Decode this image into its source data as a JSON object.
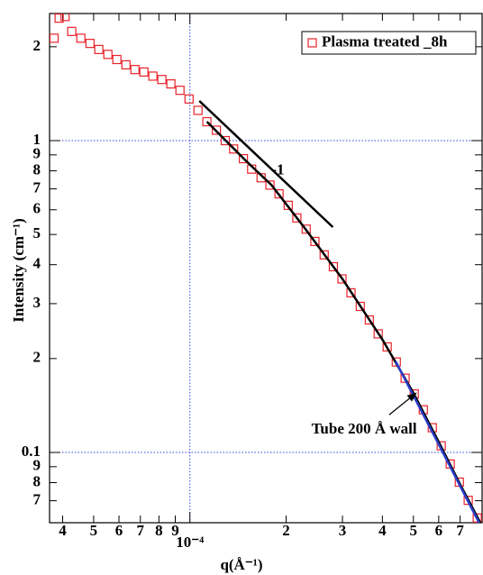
{
  "chart_data": {
    "type": "scatter",
    "xlabel": "q(Å⁻¹)",
    "ylabel": "Intensity (cm⁻¹)",
    "xscale": "log",
    "yscale": "log",
    "xlim": [
      3.64e-05,
      0.00082
    ],
    "ylim": [
      0.0595,
      2.556
    ],
    "xticks": [
      {
        "value": 4e-05,
        "label": "4"
      },
      {
        "value": 5e-05,
        "label": "5"
      },
      {
        "value": 6e-05,
        "label": "6"
      },
      {
        "value": 7e-05,
        "label": "7"
      },
      {
        "value": 8e-05,
        "label": "8"
      },
      {
        "value": 9e-05,
        "label": "9"
      },
      {
        "value": 0.0001,
        "label": "10⁻⁴"
      },
      {
        "value": 0.0002,
        "label": "2"
      },
      {
        "value": 0.0003,
        "label": "3"
      },
      {
        "value": 0.0004,
        "label": "4"
      },
      {
        "value": 0.0005,
        "label": "5"
      },
      {
        "value": 0.0006,
        "label": "6"
      },
      {
        "value": 0.0007,
        "label": "7"
      }
    ],
    "yticks": [
      {
        "value": 0.07,
        "label": "7"
      },
      {
        "value": 0.08,
        "label": "8"
      },
      {
        "value": 0.09,
        "label": "9"
      },
      0.1,
      {
        "value": 0.2,
        "label": "2"
      },
      {
        "value": 0.3,
        "label": "3"
      },
      {
        "value": 0.4,
        "label": "4"
      },
      {
        "value": 0.5,
        "label": "5"
      },
      {
        "value": 0.6,
        "label": "6"
      },
      {
        "value": 0.7,
        "label": "7"
      },
      {
        "value": 0.8,
        "label": "8"
      },
      {
        "value": 0.9,
        "label": "9"
      },
      1,
      2
    ],
    "grid": "decades",
    "grid_color": "#3344dd",
    "legend": "upper right",
    "series": [
      {
        "name": "Plasma treated _8h",
        "color": "#e8222a",
        "marker": "square",
        "x": [
          3.76e-05,
          3.9e-05,
          4.07e-05,
          4.27e-05,
          4.56e-05,
          4.87e-05,
          5.19e-05,
          5.54e-05,
          5.91e-05,
          6.31e-05,
          6.73e-05,
          7.18e-05,
          7.66e-05,
          8.17e-05,
          8.72e-05,
          9.31e-05,
          9.94e-05,
          0.000106,
          0.000113,
          0.000121,
          0.000129,
          0.000137,
          0.000147,
          0.000156,
          0.000167,
          0.000178,
          0.00019,
          0.000203,
          0.000216,
          0.000231,
          0.000246,
          0.000263,
          0.000281,
          0.000299,
          0.000319,
          0.000341,
          0.000364,
          0.000388,
          0.000414,
          0.000442,
          0.000471,
          0.000503,
          0.000537,
          0.000573,
          0.000611,
          0.000652,
          0.000696,
          0.000742,
          0.000792
        ],
        "values": [
          2.13,
          2.47,
          2.5,
          2.24,
          2.13,
          2.05,
          1.96,
          1.89,
          1.82,
          1.75,
          1.69,
          1.66,
          1.61,
          1.57,
          1.52,
          1.45,
          1.36,
          1.25,
          1.15,
          1.08,
          1.0,
          0.94,
          0.875,
          0.81,
          0.76,
          0.72,
          0.675,
          0.62,
          0.565,
          0.52,
          0.475,
          0.43,
          0.394,
          0.36,
          0.325,
          0.294,
          0.266,
          0.24,
          0.218,
          0.195,
          0.173,
          0.154,
          0.137,
          0.12,
          0.105,
          0.0918,
          0.0803,
          0.0702,
          0.0616
        ]
      },
      {
        "color": "#000000",
        "marker": "line",
        "x": [
          0.000113,
          0.00015,
          0.00018,
          0.00023,
          0.0003,
          0.0004,
          0.0005,
          0.0006,
          0.0007,
          0.00082
        ],
        "values": [
          1.15,
          0.86,
          0.72,
          0.52,
          0.36,
          0.23,
          0.155,
          0.108,
          0.079,
          0.058
        ]
      },
      {
        "color": "#2a3cc8",
        "marker": "line",
        "x": [
          0.00044,
          0.0005,
          0.0006,
          0.0007,
          0.00082
        ],
        "values": [
          0.196,
          0.152,
          0.106,
          0.078,
          0.057
        ]
      },
      {
        "color": "#000000",
        "marker": "line",
        "x": [
          0.000107,
          0.00028
        ],
        "values": [
          1.34,
          0.528
        ]
      }
    ],
    "annotations": [
      {
        "text": "-1",
        "x": 0.00018,
        "y": 0.8,
        "bold": true
      },
      {
        "text": "Tube 200 Å wall",
        "x": 0.00024,
        "y": 0.118,
        "arrow_from": [
          0.00042,
          0.132
        ],
        "arrow_to": [
          0.00051,
          0.155
        ]
      }
    ]
  }
}
